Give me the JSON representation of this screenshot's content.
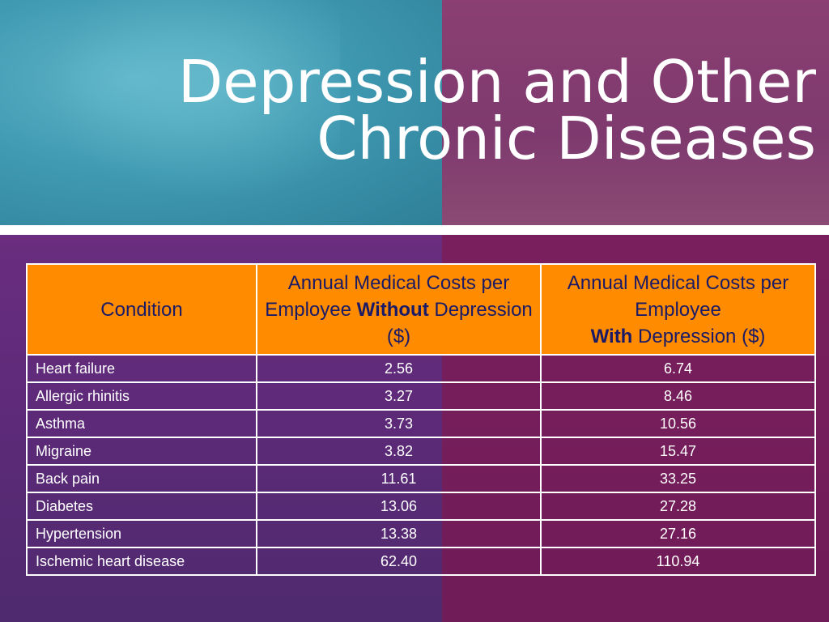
{
  "slide": {
    "title_line1": "Depression and Other",
    "title_line2": "Chronic Diseases"
  },
  "table": {
    "headers": {
      "condition": "Condition",
      "without_pre": "Annual Medical Costs per Employee ",
      "without_bold": "Without",
      "without_post": " Depression ($)",
      "with_pre": "Annual Medical Costs per Employee",
      "with_bold": "With",
      "with_post": " Depression ($)"
    },
    "rows": [
      {
        "condition": "Heart failure",
        "without": "2.56",
        "with": "6.74"
      },
      {
        "condition": "Allergic rhinitis",
        "without": "3.27",
        "with": "8.46"
      },
      {
        "condition": "Asthma",
        "without": "3.73",
        "with": "10.56"
      },
      {
        "condition": "Migraine",
        "without": "3.82",
        "with": "15.47"
      },
      {
        "condition": "Back pain",
        "without": "11.61",
        "with": "33.25"
      },
      {
        "condition": "Diabetes",
        "without": "13.06",
        "with": "27.28"
      },
      {
        "condition": "Hypertension",
        "without": "13.38",
        "with": "27.16"
      },
      {
        "condition": "Ischemic heart disease",
        "without": "62.40",
        "with": "110.94"
      }
    ]
  },
  "colors": {
    "header_bg": "#ff8c00",
    "header_text": "#1a1a66",
    "teal": "#3f9ab2",
    "plum": "#7e3a6e"
  }
}
